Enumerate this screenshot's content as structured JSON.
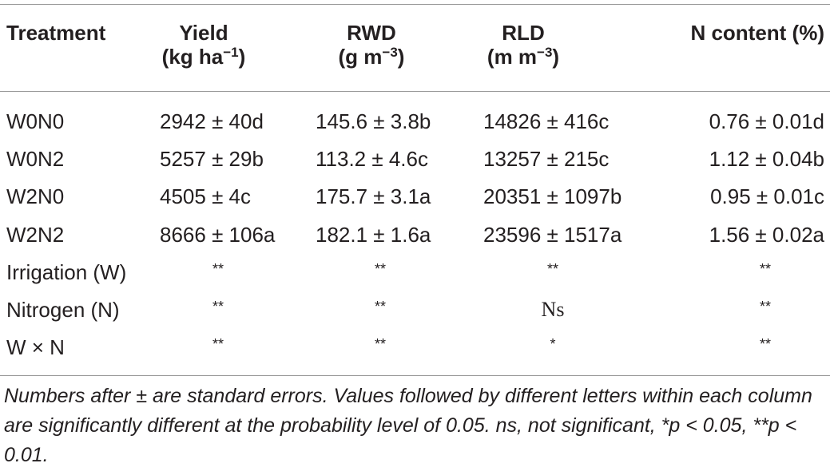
{
  "table": {
    "header": [
      {
        "name": "Treatment"
      },
      {
        "name": "Yield",
        "unit": "(kg ha",
        "sup": "−1",
        "close": ")"
      },
      {
        "name": "RWD",
        "unit": "(g m",
        "sup": "−3",
        "close": ")"
      },
      {
        "name": "RLD",
        "unit": "(m m",
        "sup": "−3",
        "close": ")"
      },
      {
        "name": "N content (%)"
      }
    ],
    "rows": [
      [
        "W0N0",
        "2942 ± 40d",
        "145.6 ± 3.8b",
        "14826 ± 416c",
        "0.76 ± 0.01d"
      ],
      [
        "W0N2",
        "5257 ± 29b",
        "113.2 ± 4.6c",
        "13257 ± 215c",
        "1.12 ± 0.04b"
      ],
      [
        "W2N0",
        "4505 ± 4c",
        "175.7 ± 3.1a",
        "20351 ± 1097b",
        "0.95 ± 0.01c"
      ],
      [
        "W2N2",
        "8666 ± 106a",
        "182.1 ± 1.6a",
        "23596 ± 1517a",
        "1.56 ± 0.02a"
      ],
      [
        "Irrigation (W)",
        "**",
        "**",
        "**",
        "**"
      ],
      [
        "Nitrogen (N)",
        "**",
        "**",
        "Ns",
        "**"
      ],
      [
        "W × N",
        "**",
        "**",
        "*",
        "**"
      ]
    ],
    "footnote": "Numbers after ± are standard errors. Values followed by different letters within each column are significantly different at the probability level of 0.05. ns, not significant, *p < 0.05, **p < 0.01."
  }
}
